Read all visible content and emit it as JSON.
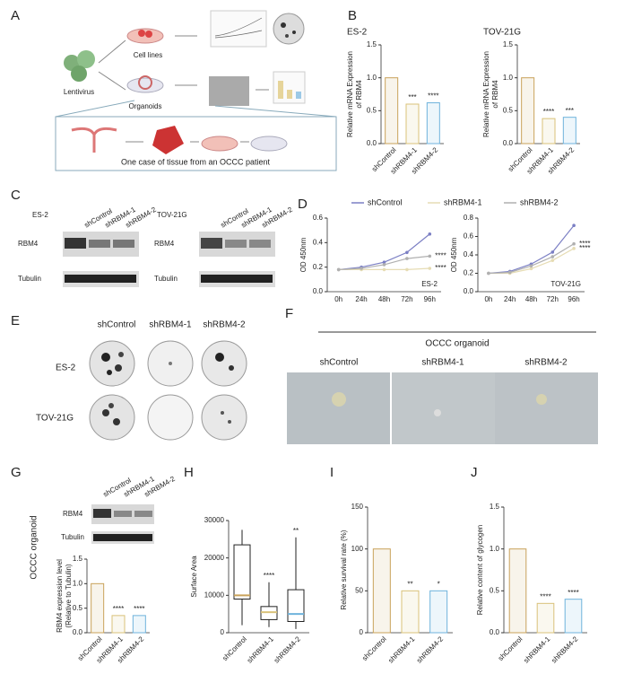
{
  "panel_labels": [
    "A",
    "B",
    "C",
    "D",
    "E",
    "F",
    "G",
    "H",
    "I",
    "J"
  ],
  "schematic": {
    "virus": "Lentivirus",
    "cell_lines": "Cell lines",
    "organoids": "Organoids",
    "caption": "One case of tissue from an OCCC patient"
  },
  "western_c": {
    "cells": [
      "ES-2",
      "TOV-21G"
    ],
    "lanes": [
      "shControl",
      "shRBM4-1",
      "shRBM4-2"
    ],
    "rows": [
      "RBM4",
      "Tubulin"
    ]
  },
  "colony_e": {
    "columns": [
      "shControl",
      "shRBM4-1",
      "shRBM4-2"
    ],
    "rows": [
      "ES-2",
      "TOV-21G"
    ]
  },
  "organoid_f": {
    "title": "OCCC organoid",
    "columns": [
      "shControl",
      "shRBM4-1",
      "shRBM4-2"
    ]
  },
  "western_g": {
    "side_label": "OCCC organoid",
    "lanes": [
      "shControl",
      "shRBM4-1",
      "shRBM4-2"
    ],
    "rows": [
      "RBM4",
      "Tubulin"
    ]
  },
  "chart_data": [
    {
      "type": "bar",
      "title": "ES-2",
      "ylabel": [
        "Relative mRNA Expression",
        "of RBM4"
      ],
      "categories": [
        "shControl",
        "shRBM4-1",
        "shRBM4-2"
      ],
      "values": [
        1.0,
        0.6,
        0.62
      ],
      "significance": [
        null,
        "***",
        "****"
      ],
      "colors": [
        "#c9a25a",
        "#d9c27a",
        "#6fb3dc"
      ],
      "ylim": [
        0,
        1.5
      ],
      "yticks": [
        {
          "value": 0,
          "label": "0.0"
        },
        0.5,
        {
          "value": 1,
          "label": "1.0"
        },
        1.5
      ]
    },
    {
      "type": "bar",
      "title": "TOV-21G",
      "ylabel": [
        "Relative mRNA Expression",
        "of RBM4"
      ],
      "categories": [
        "shControl",
        "shRBM4-1",
        "shRBM4-2"
      ],
      "values": [
        1.0,
        0.38,
        0.4
      ],
      "significance": [
        null,
        "****",
        "***"
      ],
      "colors": [
        "#c9a25a",
        "#d9c27a",
        "#6fb3dc"
      ],
      "ylim": [
        0,
        1.5
      ],
      "yticks": [
        {
          "value": 0,
          "label": "0.0"
        },
        0.5,
        {
          "value": 1,
          "label": "1.0"
        },
        1.5
      ]
    },
    {
      "type": "line",
      "label": "ES-2",
      "ylabel": [
        "OD 450nm"
      ],
      "categories": [
        "0h",
        "24h",
        "48h",
        "72h",
        "96h"
      ],
      "series": [
        {
          "name": "shControl",
          "color": "#7b7fc4",
          "values": [
            0.18,
            0.2,
            0.24,
            0.32,
            0.47
          ]
        },
        {
          "name": "shRBM4-1",
          "color": "#e6dcb4",
          "values": [
            0.18,
            0.18,
            0.18,
            0.18,
            0.19
          ]
        },
        {
          "name": "shRBM4-2",
          "color": "#b0b0b0",
          "values": [
            0.18,
            0.19,
            0.22,
            0.27,
            0.29
          ]
        }
      ],
      "annotations": [
        "****",
        "****"
      ],
      "ylim": [
        0,
        0.6
      ],
      "yticks": [
        {
          "value": 0,
          "label": "0.0"
        },
        0.2,
        0.4,
        0.6
      ]
    },
    {
      "type": "line",
      "label": "TOV-21G",
      "ylabel": [
        "OD 450nm"
      ],
      "categories": [
        "0h",
        "24h",
        "48h",
        "72h",
        "96h"
      ],
      "series": [
        {
          "name": "shControl",
          "color": "#7b7fc4",
          "values": [
            0.2,
            0.22,
            0.3,
            0.43,
            0.72
          ]
        },
        {
          "name": "shRBM4-1",
          "color": "#e6dcb4",
          "values": [
            0.2,
            0.2,
            0.25,
            0.34,
            0.47
          ]
        },
        {
          "name": "shRBM4-2",
          "color": "#b0b0b0",
          "values": [
            0.2,
            0.21,
            0.28,
            0.38,
            0.52
          ]
        }
      ],
      "annotations": [
        "****",
        "****"
      ],
      "ylim": [
        0,
        0.8
      ],
      "yticks": [
        {
          "value": 0,
          "label": "0.0"
        },
        0.2,
        0.4,
        0.6,
        0.8
      ]
    },
    {
      "type": "bar",
      "ylabel": [
        "RBM4  expression level",
        "(Relative to Tubulin)"
      ],
      "categories": [
        "shControl",
        "shRBM4-1",
        "shRBM4-2"
      ],
      "values": [
        1.0,
        0.35,
        0.35
      ],
      "significance": [
        null,
        "****",
        "****"
      ],
      "colors": [
        "#c9a25a",
        "#d9c27a",
        "#6fb3dc"
      ],
      "ylim": [
        0,
        1.5
      ],
      "yticks": [
        {
          "value": 0,
          "label": "0.0"
        },
        0.5,
        {
          "value": 1,
          "label": "1.0"
        },
        1.5
      ]
    },
    {
      "type": "box",
      "ylabel": [
        "Surface Area"
      ],
      "categories": [
        "shControl",
        "shRBM4-1",
        "shRBM4-2"
      ],
      "boxes": [
        {
          "min": 2000,
          "q1": 9000,
          "median": 10000,
          "q3": 23500,
          "max": 27500
        },
        {
          "min": 1500,
          "q1": 3500,
          "median": 5500,
          "q3": 7000,
          "max": 13500
        },
        {
          "min": 1000,
          "q1": 3000,
          "median": 5000,
          "q3": 11500,
          "max": 25500
        }
      ],
      "significance": [
        null,
        "****",
        "**"
      ],
      "colors": [
        "#c9a25a",
        "#d9c27a",
        "#6fb3dc"
      ],
      "ylim": [
        0,
        30000
      ],
      "yticks": [
        0,
        10000,
        20000,
        30000
      ]
    },
    {
      "type": "bar",
      "ylabel": [
        "Relative survival rate (%)"
      ],
      "categories": [
        "shControl",
        "shRBM4-1",
        "shRBM4-2"
      ],
      "values": [
        100,
        50,
        50
      ],
      "significance": [
        null,
        "**",
        "*"
      ],
      "colors": [
        "#c9a25a",
        "#d9c27a",
        "#6fb3dc"
      ],
      "ylim": [
        0,
        150
      ],
      "yticks": [
        0,
        50,
        100,
        150
      ]
    },
    {
      "type": "bar",
      "ylabel": [
        "Relative content of glycogen"
      ],
      "categories": [
        "shControl",
        "shRBM4-1",
        "shRBM4-2"
      ],
      "values": [
        1.0,
        0.35,
        0.4
      ],
      "significance": [
        null,
        "****",
        "****"
      ],
      "colors": [
        "#c9a25a",
        "#d9c27a",
        "#6fb3dc"
      ],
      "ylim": [
        0,
        1.5
      ],
      "yticks": [
        {
          "value": 0,
          "label": "0.0"
        },
        0.5,
        {
          "value": 1,
          "label": "1.0"
        },
        1.5
      ]
    }
  ]
}
